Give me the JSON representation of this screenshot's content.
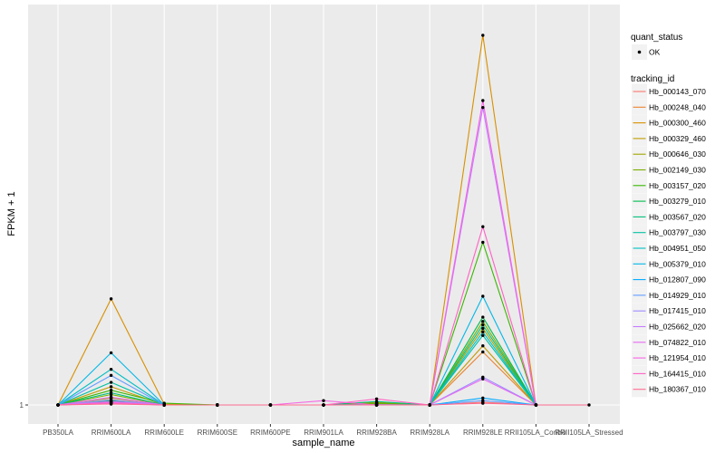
{
  "chart_data": {
    "type": "line",
    "xlabel": "sample_name",
    "ylabel": "FPKM + 1",
    "y_tick_labels": [
      "1"
    ],
    "grid": true,
    "legend_position": "right",
    "categories": [
      "PB350LA",
      "RRIM600LA",
      "RRIM600LE",
      "RRIM600SE",
      "RRIM600PE",
      "RRIM901LA",
      "RRIM928BA",
      "RRIM928LA",
      "RRIM928LE",
      "RRII105LA_Control",
      "RRII105LA_Stressed"
    ],
    "quant_status_legend": {
      "title": "quant_status",
      "entries": [
        "OK"
      ]
    },
    "tracking_legend_title": "tracking_id",
    "series": [
      {
        "name": "Hb_000143_070",
        "color": "#F8766D",
        "values": [
          1,
          1.3,
          1,
          1,
          1,
          1,
          1,
          1,
          1.3,
          1,
          null
        ]
      },
      {
        "name": "Hb_000248_040",
        "color": "#EA8331",
        "values": [
          1,
          1.4,
          1,
          1,
          1,
          1,
          1.1,
          1,
          7.1,
          1,
          null
        ]
      },
      {
        "name": "Hb_000300_460",
        "color": "#D89000",
        "values": [
          1,
          13.2,
          1.1,
          1,
          1,
          1,
          1.2,
          1,
          43.5,
          1,
          null
        ]
      },
      {
        "name": "Hb_000329_460",
        "color": "#C09B00",
        "values": [
          1,
          3.1,
          1,
          1,
          1,
          1,
          1.3,
          1,
          7.8,
          1,
          null
        ]
      },
      {
        "name": "Hb_000646_030",
        "color": "#A3A500",
        "values": [
          1,
          1.8,
          1,
          1,
          1,
          1,
          1,
          1,
          9.8,
          1,
          null
        ]
      },
      {
        "name": "Hb_002149_030",
        "color": "#7CAE00",
        "values": [
          1,
          2.2,
          1,
          1,
          1,
          1,
          1.2,
          1,
          10.6,
          1,
          null
        ]
      },
      {
        "name": "Hb_003157_020",
        "color": "#39B600",
        "values": [
          1,
          2.7,
          1.2,
          1,
          1,
          1,
          1.1,
          1,
          19.7,
          1,
          null
        ]
      },
      {
        "name": "Hb_003279_010",
        "color": "#00BB4E",
        "values": [
          1,
          1.5,
          1,
          1,
          1,
          1,
          1,
          1,
          11.1,
          1,
          null
        ]
      },
      {
        "name": "Hb_003567_020",
        "color": "#00BF7D",
        "values": [
          1,
          2.4,
          1,
          1,
          1,
          1,
          1.4,
          1,
          10.2,
          1,
          null
        ]
      },
      {
        "name": "Hb_003797_030",
        "color": "#00C1A3",
        "values": [
          1,
          3.6,
          1,
          1,
          1,
          1,
          1,
          1,
          9.0,
          1,
          null
        ]
      },
      {
        "name": "Hb_004951_050",
        "color": "#00BFC4",
        "values": [
          1,
          5.1,
          1,
          1,
          1,
          1,
          1,
          1,
          9.4,
          1,
          null
        ]
      },
      {
        "name": "Hb_005379_010",
        "color": "#00B8E7",
        "values": [
          1,
          7.0,
          1,
          1,
          1,
          1,
          1,
          1,
          13.5,
          1,
          null
        ]
      },
      {
        "name": "Hb_012807_090",
        "color": "#00A9FF",
        "values": [
          1,
          1.2,
          1,
          1,
          1,
          1,
          1,
          1,
          1.8,
          1,
          null
        ]
      },
      {
        "name": "Hb_014929_010",
        "color": "#619CFF",
        "values": [
          1,
          4.4,
          1,
          1,
          1,
          1,
          1,
          1,
          1.5,
          1,
          null
        ]
      },
      {
        "name": "Hb_017415_010",
        "color": "#9F8CFF",
        "values": [
          1,
          1.6,
          1,
          1,
          1,
          1,
          1.05,
          1,
          4.2,
          1,
          null
        ]
      },
      {
        "name": "Hb_025662_020",
        "color": "#C77CFF",
        "values": [
          1,
          1.4,
          1,
          1,
          1,
          1,
          1,
          1,
          35.2,
          1,
          null
        ]
      },
      {
        "name": "Hb_074822_010",
        "color": "#E76BF3",
        "values": [
          1,
          1.9,
          1,
          1,
          1,
          1,
          1,
          1,
          4.0,
          1,
          null
        ]
      },
      {
        "name": "Hb_121954_010",
        "color": "#F564E3",
        "values": [
          1,
          1.3,
          1,
          1,
          1,
          1.5,
          1,
          1,
          36.0,
          1,
          null
        ]
      },
      {
        "name": "Hb_164415_010",
        "color": "#FF61C3",
        "values": [
          1,
          1.2,
          1,
          1,
          1,
          1,
          1.7,
          1,
          21.5,
          1,
          null
        ]
      },
      {
        "name": "Hb_180367_010",
        "color": "#FF6C91",
        "values": [
          1,
          1.1,
          1,
          1,
          1,
          1,
          1,
          1,
          1.2,
          1,
          1
        ]
      }
    ]
  }
}
